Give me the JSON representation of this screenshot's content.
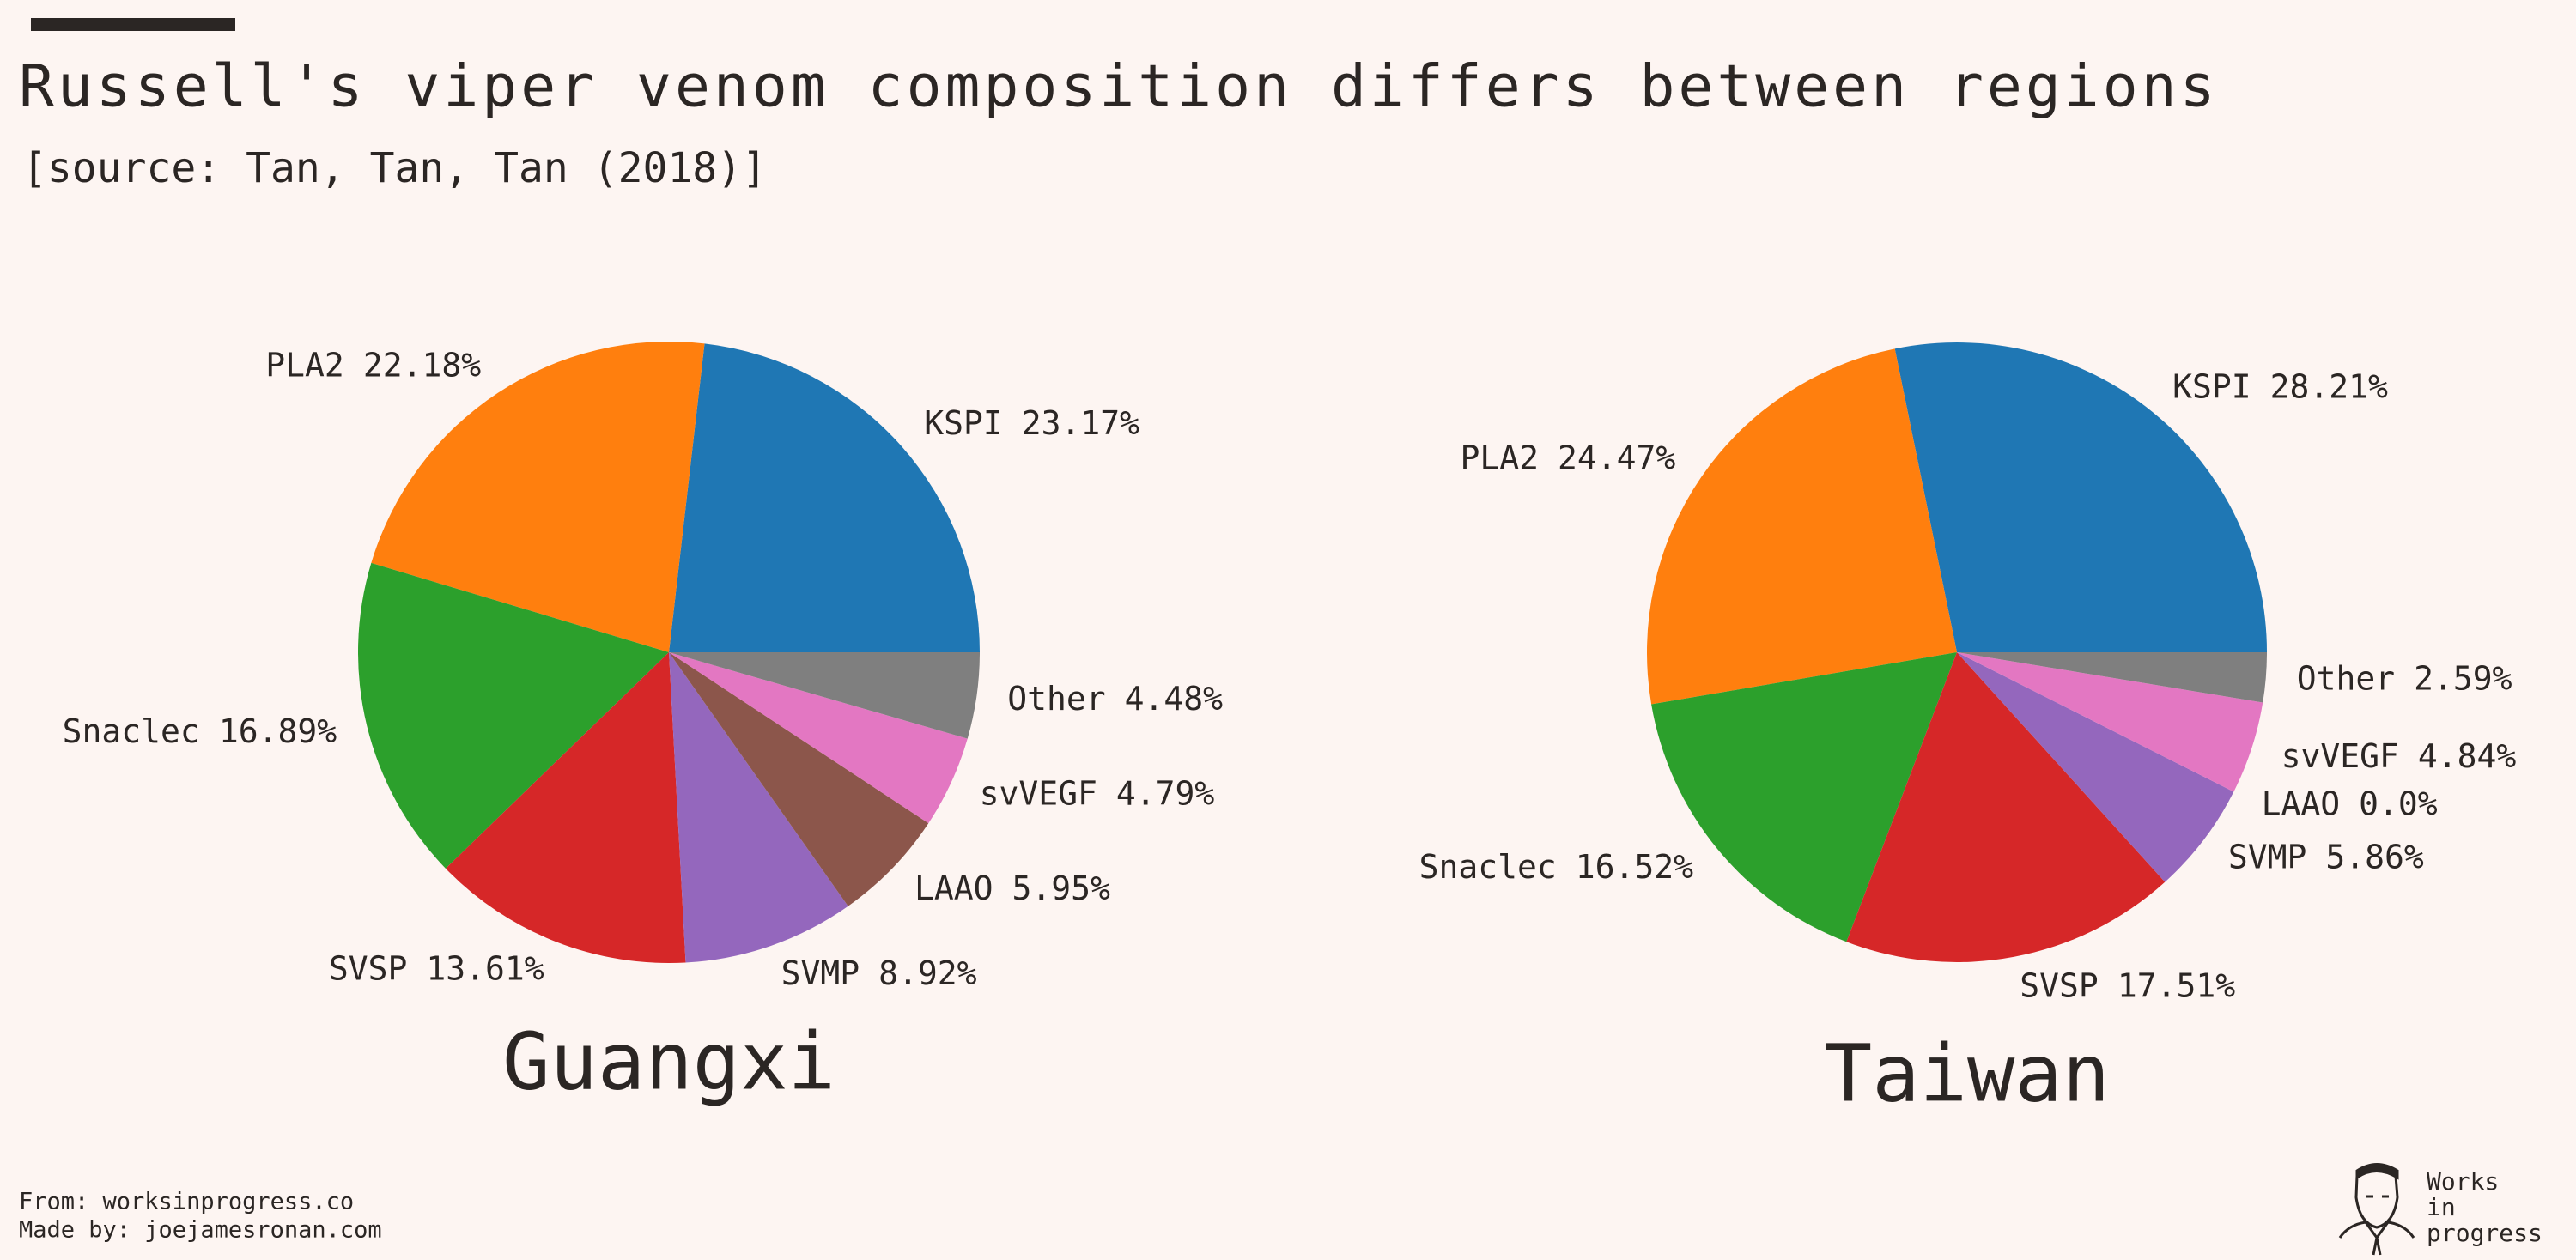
{
  "header": {
    "title": "Russell's viper venom composition differs between regions",
    "subtitle": "[source: Tan, Tan, Tan (2018)]"
  },
  "chart_data": [
    {
      "type": "pie",
      "title": "Guangxi",
      "categories": [
        "KSPI",
        "PLA2",
        "Snaclec",
        "SVSP",
        "SVMP",
        "LAAO",
        "svVEGF",
        "Other"
      ],
      "values": [
        23.17,
        22.18,
        16.89,
        13.61,
        8.92,
        5.95,
        4.79,
        4.48
      ],
      "value_labels": [
        "23.17%",
        "22.18%",
        "16.89%",
        "13.61%",
        "8.92%",
        "5.95%",
        "4.79%",
        "4.48%"
      ],
      "colors": [
        "#1f77b4",
        "#ff7f0e",
        "#2ca02c",
        "#d62728",
        "#9467bd",
        "#8c564b",
        "#e377c2",
        "#7f7f7f"
      ]
    },
    {
      "type": "pie",
      "title": "Taiwan",
      "categories": [
        "KSPI",
        "PLA2",
        "Snaclec",
        "SVSP",
        "SVMP",
        "LAAO",
        "svVEGF",
        "Other"
      ],
      "values": [
        28.21,
        24.47,
        16.52,
        17.51,
        5.86,
        0.0,
        4.84,
        2.59
      ],
      "value_labels": [
        "28.21%",
        "24.47%",
        "16.52%",
        "17.51%",
        "5.86%",
        "0.0%",
        "4.84%",
        "2.59%"
      ],
      "colors": [
        "#1f77b4",
        "#ff7f0e",
        "#2ca02c",
        "#d62728",
        "#9467bd",
        "#8c564b",
        "#e377c2",
        "#7f7f7f"
      ]
    }
  ],
  "footer": {
    "from": "From: worksinprogress.co",
    "made_by": "Made by: joejamesronan.com"
  },
  "logo": {
    "lines": [
      "Works",
      "in",
      "progress"
    ]
  }
}
